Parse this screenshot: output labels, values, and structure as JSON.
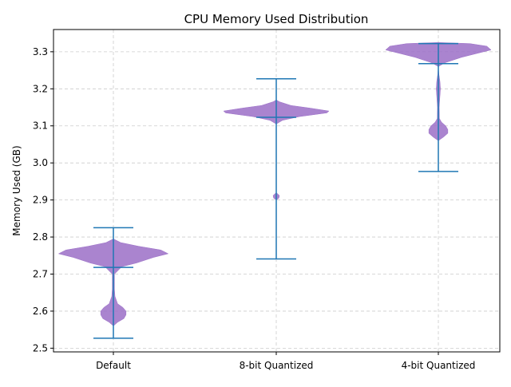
{
  "chart_data": {
    "type": "violin",
    "title": "CPU Memory Used Distribution",
    "xlabel": "",
    "ylabel": "Memory Used (GB)",
    "ylim": [
      2.49,
      3.36
    ],
    "yticks": [
      2.5,
      2.6,
      2.7,
      2.8,
      2.9,
      3.0,
      3.1,
      3.2,
      3.3
    ],
    "ytick_labels": [
      "2.5",
      "2.6",
      "2.7",
      "2.8",
      "2.9",
      "3.0",
      "3.1",
      "3.2",
      "3.3"
    ],
    "categories": [
      "Default",
      "8-bit Quantized",
      "4-bit Quantized"
    ],
    "grid": true,
    "colors": {
      "violin_fill": "#9b6fc7",
      "stat_lines": "#1f77b4",
      "grid": "#cccccc",
      "axes": "#000000"
    },
    "violins": [
      {
        "category": "Default",
        "min": 2.527,
        "max": 2.825,
        "median": 2.718,
        "density": [
          [
            2.56,
            0.0
          ],
          [
            2.57,
            0.04
          ],
          [
            2.58,
            0.1
          ],
          [
            2.59,
            0.12
          ],
          [
            2.6,
            0.12
          ],
          [
            2.61,
            0.09
          ],
          [
            2.62,
            0.04
          ],
          [
            2.64,
            0.015
          ],
          [
            2.66,
            0.01
          ],
          [
            2.68,
            0.01
          ],
          [
            2.7,
            0.01
          ],
          [
            2.72,
            0.08
          ],
          [
            2.73,
            0.22
          ],
          [
            2.745,
            0.38
          ],
          [
            2.755,
            0.52
          ],
          [
            2.765,
            0.45
          ],
          [
            2.775,
            0.24
          ],
          [
            2.785,
            0.07
          ],
          [
            2.795,
            0.0
          ]
        ]
      },
      {
        "category": "8-bit Quantized",
        "min": 2.741,
        "max": 3.227,
        "median": 3.123,
        "density": [
          [
            2.9,
            0.0
          ],
          [
            2.905,
            0.025
          ],
          [
            2.912,
            0.03
          ],
          [
            2.92,
            0.0
          ],
          [
            3.0,
            0.0
          ],
          [
            3.105,
            0.0
          ],
          [
            3.115,
            0.06
          ],
          [
            3.125,
            0.22
          ],
          [
            3.135,
            0.48
          ],
          [
            3.14,
            0.5
          ],
          [
            3.148,
            0.32
          ],
          [
            3.155,
            0.14
          ],
          [
            3.165,
            0.03
          ],
          [
            3.17,
            0.0
          ]
        ]
      },
      {
        "category": "4-bit Quantized",
        "min": 2.977,
        "max": 3.322,
        "median": 3.268,
        "density": [
          [
            3.06,
            0.0
          ],
          [
            3.07,
            0.05
          ],
          [
            3.08,
            0.09
          ],
          [
            3.09,
            0.09
          ],
          [
            3.1,
            0.07
          ],
          [
            3.11,
            0.03
          ],
          [
            3.12,
            0.01
          ],
          [
            3.15,
            0.008
          ],
          [
            3.18,
            0.015
          ],
          [
            3.2,
            0.02
          ],
          [
            3.22,
            0.015
          ],
          [
            3.24,
            0.005
          ],
          [
            3.26,
            0.0
          ],
          [
            3.27,
            0.06
          ],
          [
            3.285,
            0.22
          ],
          [
            3.295,
            0.36
          ],
          [
            3.305,
            0.5
          ],
          [
            3.315,
            0.46
          ],
          [
            3.322,
            0.3
          ],
          [
            3.325,
            0.0
          ]
        ]
      }
    ]
  }
}
